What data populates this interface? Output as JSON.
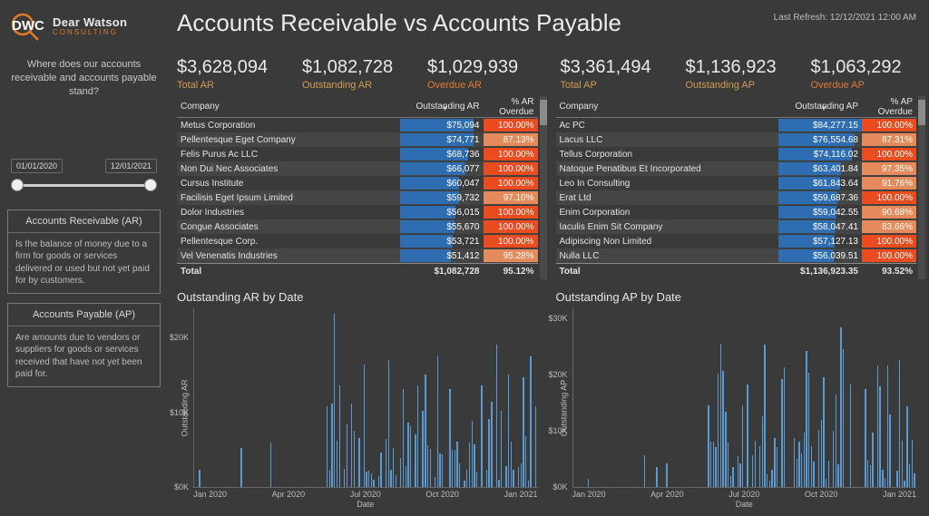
{
  "logo": {
    "line1": "Dear Watson",
    "line2": "CONSULTING"
  },
  "sidebar": {
    "question": "Where does our accounts receivable and accounts payable stand?",
    "date_from": "01/01/2020",
    "date_to": "12/01/2021",
    "ar_def_title": "Accounts Receivable (AR)",
    "ar_def_body": "Is the balance of money due to a firm for goods or services delivered or used but not yet paid for by customers.",
    "ap_def_title": "Accounts Payable (AP)",
    "ap_def_body": "Are amounts due to vendors or suppliers for goods or services received that have not yet been paid for."
  },
  "header": {
    "title": "Accounts Receivable vs Accounts Payable",
    "last_refresh_label": "Last Refresh:",
    "last_refresh_value": "12/12/2021 12:00 AM"
  },
  "kpi": {
    "ar_total": {
      "value": "$3,628,094",
      "label": "Total AR"
    },
    "ar_outstanding": {
      "value": "$1,082,728",
      "label": "Outstanding AR"
    },
    "ar_overdue": {
      "value": "$1,029,939",
      "label": "Overdue AR"
    },
    "ap_total": {
      "value": "$3,361,494",
      "label": "Total AP"
    },
    "ap_outstanding": {
      "value": "$1,136,923",
      "label": "Outstanding AP"
    },
    "ap_overdue": {
      "value": "$1,063,292",
      "label": "Overdue AP"
    }
  },
  "palette": {
    "bar_blue": "#2f6db3",
    "pct_full": "#ea4b1f",
    "pct_mid": "#e58a5a",
    "chart_bar": "#5a9bd5",
    "text_gold": "#d29b55",
    "text_orange": "#e27a33",
    "bg": "#3a3a3a"
  },
  "ar_table": {
    "col_company": "Company",
    "col_value": "Outstanding AR",
    "col_pct": "% AR Overdue",
    "total_label": "Total",
    "total_value": "$1,082,728",
    "total_pct": "95.12%",
    "max_value": 84277,
    "rows": [
      {
        "company": "Metus Corporation",
        "value": 75094,
        "display": "$75,094",
        "pct": "100.00%",
        "pct_v": 100
      },
      {
        "company": "Pellentesque Eget Company",
        "value": 74771,
        "display": "$74,771",
        "pct": "87.13%",
        "pct_v": 87.13
      },
      {
        "company": "Felis Purus Ac LLC",
        "value": 68736,
        "display": "$68,736",
        "pct": "100.00%",
        "pct_v": 100
      },
      {
        "company": "Non Dui Nec Associates",
        "value": 66077,
        "display": "$66,077",
        "pct": "100.00%",
        "pct_v": 100
      },
      {
        "company": "Cursus Institute",
        "value": 60047,
        "display": "$60,047",
        "pct": "100.00%",
        "pct_v": 100
      },
      {
        "company": "Facilisis Eget Ipsum Limited",
        "value": 59732,
        "display": "$59,732",
        "pct": "97.10%",
        "pct_v": 97.1
      },
      {
        "company": "Dolor Industries",
        "value": 56015,
        "display": "$56,015",
        "pct": "100.00%",
        "pct_v": 100
      },
      {
        "company": "Congue Associates",
        "value": 55670,
        "display": "$55,670",
        "pct": "100.00%",
        "pct_v": 100
      },
      {
        "company": "Pellentesque Corp.",
        "value": 53721,
        "display": "$53,721",
        "pct": "100.00%",
        "pct_v": 100
      },
      {
        "company": "Vel Venenatis Industries",
        "value": 51412,
        "display": "$51,412",
        "pct": "95.28%",
        "pct_v": 95.28
      }
    ]
  },
  "ap_table": {
    "col_company": "Company",
    "col_value": "Outstanding AP",
    "col_pct": "% AP Overdue",
    "total_label": "Total",
    "total_value": "$1,136,923.35",
    "total_pct": "93.52%",
    "max_value": 84277,
    "rows": [
      {
        "company": "Ac PC",
        "value": 84277.15,
        "display": "$84,277.15",
        "pct": "100.00%",
        "pct_v": 100
      },
      {
        "company": "Lacus LLC",
        "value": 76554.68,
        "display": "$76,554.68",
        "pct": "87.31%",
        "pct_v": 87.31
      },
      {
        "company": "Tellus Corporation",
        "value": 74116.02,
        "display": "$74,116.02",
        "pct": "100.00%",
        "pct_v": 100
      },
      {
        "company": "Natoque Penatibus Et Incorporated",
        "value": 63401.84,
        "display": "$63,401.84",
        "pct": "97.35%",
        "pct_v": 97.35
      },
      {
        "company": "Leo In Consulting",
        "value": 61843.64,
        "display": "$61,843.64",
        "pct": "91.76%",
        "pct_v": 91.76
      },
      {
        "company": "Erat Ltd",
        "value": 59687.36,
        "display": "$59,687.36",
        "pct": "100.00%",
        "pct_v": 100
      },
      {
        "company": "Enim Corporation",
        "value": 59042.55,
        "display": "$59,042.55",
        "pct": "90.68%",
        "pct_v": 90.68
      },
      {
        "company": "Iaculis Enim Sit Company",
        "value": 58047.41,
        "display": "$58,047.41",
        "pct": "83.66%",
        "pct_v": 83.66
      },
      {
        "company": "Adipiscing Non Limited",
        "value": 57127.13,
        "display": "$57,127.13",
        "pct": "100.00%",
        "pct_v": 100
      },
      {
        "company": "Nulla LLC",
        "value": 56039.51,
        "display": "$56,039.51",
        "pct": "100.00%",
        "pct_v": 100
      }
    ]
  },
  "ar_chart": {
    "title": "Outstanding AR by Date",
    "ylabel": "Outstanding AR",
    "xlabel": "Date",
    "ymax": 24000,
    "yticks": [
      {
        "v": 0,
        "t": "$0K"
      },
      {
        "v": 10000,
        "t": "$10K"
      },
      {
        "v": 20000,
        "t": "$20K"
      }
    ],
    "xticks": [
      "Jan 2020",
      "Apr 2020",
      "Jul 2020",
      "Oct 2020",
      "Jan 2021"
    ],
    "bar_color": "#5a9bd5",
    "seed": 17
  },
  "ap_chart": {
    "title": "Outstanding AP by Date",
    "ylabel": "Outstanding AP",
    "xlabel": "Date",
    "ymax": 32000,
    "yticks": [
      {
        "v": 0,
        "t": "$0K"
      },
      {
        "v": 10000,
        "t": "$10K"
      },
      {
        "v": 20000,
        "t": "$20K"
      },
      {
        "v": 30000,
        "t": "$30K"
      }
    ],
    "xticks": [
      "Jan 2020",
      "Apr 2020",
      "Jul 2020",
      "Oct 2020",
      "Jan 2021"
    ],
    "bar_color": "#5a9bd5",
    "seed": 41
  }
}
